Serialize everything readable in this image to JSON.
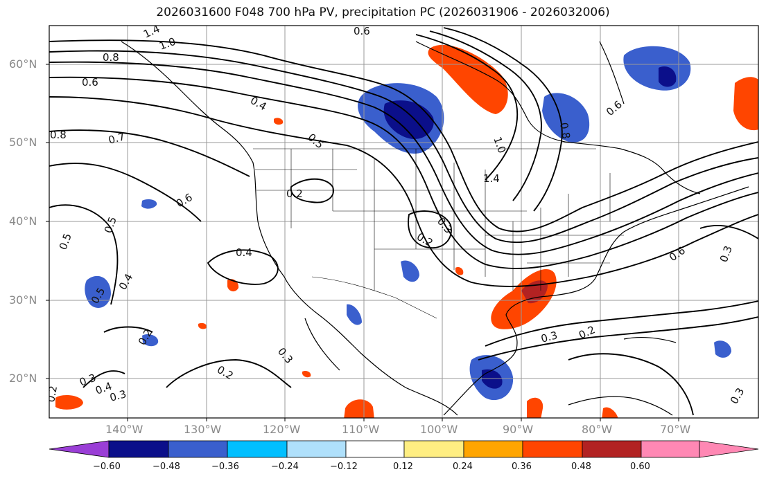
{
  "title": "2026031600 F048 700 hPa PV, precipitation PC (2026031906 - 2026032006)",
  "latitude_labels": [
    "60°N",
    "50°N",
    "40°N",
    "30°N",
    "20°N"
  ],
  "longitude_labels": [
    "140°W",
    "130°W",
    "120°W",
    "110°W",
    "100°W",
    "90°W",
    "80°W",
    "70°W"
  ],
  "colorbar": {
    "ticks": [
      "−0.60",
      "−0.48",
      "−0.36",
      "−0.24",
      "−0.12",
      "0.12",
      "0.24",
      "0.36",
      "0.48",
      "0.60"
    ],
    "colors": [
      "#9a3ed6",
      "#0b0f8a",
      "#3a5fcd",
      "#00bfff",
      "#afe0fb",
      "#ffffff",
      "#ffee82",
      "#ffa500",
      "#ff4500",
      "#b22222",
      "#ff88b4"
    ]
  },
  "contour_labels": [
    "1.4",
    "1.0",
    "0.8",
    "0.6",
    "0.6",
    "0.7",
    "0.8",
    "0.6",
    "0.4",
    "0.5",
    "0.5",
    "0.5",
    "0.2",
    "0.4",
    "0.4",
    "0.5",
    "0.2",
    "0.3",
    "0.4",
    "0.3",
    "0.2",
    "0.3",
    "0.2",
    "1.4",
    "1.0",
    "0.8",
    "0.6",
    "0.3",
    "0.2",
    "0.3",
    "0.2",
    "0.6",
    "0.3",
    "0.3"
  ]
}
